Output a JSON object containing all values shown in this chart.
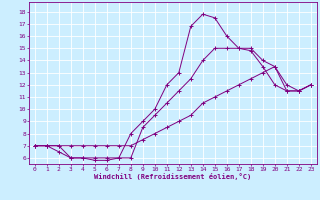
{
  "xlabel": "Windchill (Refroidissement éolien,°C)",
  "bg_color": "#cceeff",
  "line_color": "#800080",
  "grid_color": "#ffffff",
  "xlim": [
    -0.5,
    23.5
  ],
  "ylim": [
    5.5,
    18.8
  ],
  "xticks": [
    0,
    1,
    2,
    3,
    4,
    5,
    6,
    7,
    8,
    9,
    10,
    11,
    12,
    13,
    14,
    15,
    16,
    17,
    18,
    19,
    20,
    21,
    22,
    23
  ],
  "yticks": [
    6,
    7,
    8,
    9,
    10,
    11,
    12,
    13,
    14,
    15,
    16,
    17,
    18
  ],
  "lines": [
    {
      "x": [
        0,
        1,
        2,
        3,
        4,
        5,
        6,
        7,
        8,
        9,
        10,
        11,
        12,
        13,
        14,
        15,
        16,
        17,
        18,
        19,
        20,
        21,
        22,
        23
      ],
      "y": [
        7,
        7,
        6.5,
        6,
        6,
        5.8,
        5.8,
        6,
        8.0,
        9.0,
        10.0,
        12.0,
        13.0,
        16.8,
        17.8,
        17.5,
        16.0,
        15.0,
        14.8,
        13.5,
        12.0,
        11.5,
        11.5,
        12.0
      ]
    },
    {
      "x": [
        0,
        1,
        2,
        3,
        4,
        5,
        6,
        7,
        8,
        9,
        10,
        11,
        12,
        13,
        14,
        15,
        16,
        17,
        18,
        19,
        20,
        21,
        22,
        23
      ],
      "y": [
        7,
        7,
        7,
        6,
        6,
        6,
        6,
        6,
        6.0,
        8.5,
        9.5,
        10.5,
        11.5,
        12.5,
        14.0,
        15.0,
        15.0,
        15.0,
        15.0,
        14.0,
        13.5,
        12.0,
        11.5,
        12.0
      ]
    },
    {
      "x": [
        0,
        1,
        2,
        3,
        4,
        5,
        6,
        7,
        8,
        9,
        10,
        11,
        12,
        13,
        14,
        15,
        16,
        17,
        18,
        19,
        20,
        21,
        22,
        23
      ],
      "y": [
        7,
        7,
        7,
        7,
        7,
        7,
        7,
        7,
        7.0,
        7.5,
        8.0,
        8.5,
        9.0,
        9.5,
        10.5,
        11.0,
        11.5,
        12.0,
        12.5,
        13.0,
        13.5,
        11.5,
        11.5,
        12.0
      ]
    }
  ]
}
